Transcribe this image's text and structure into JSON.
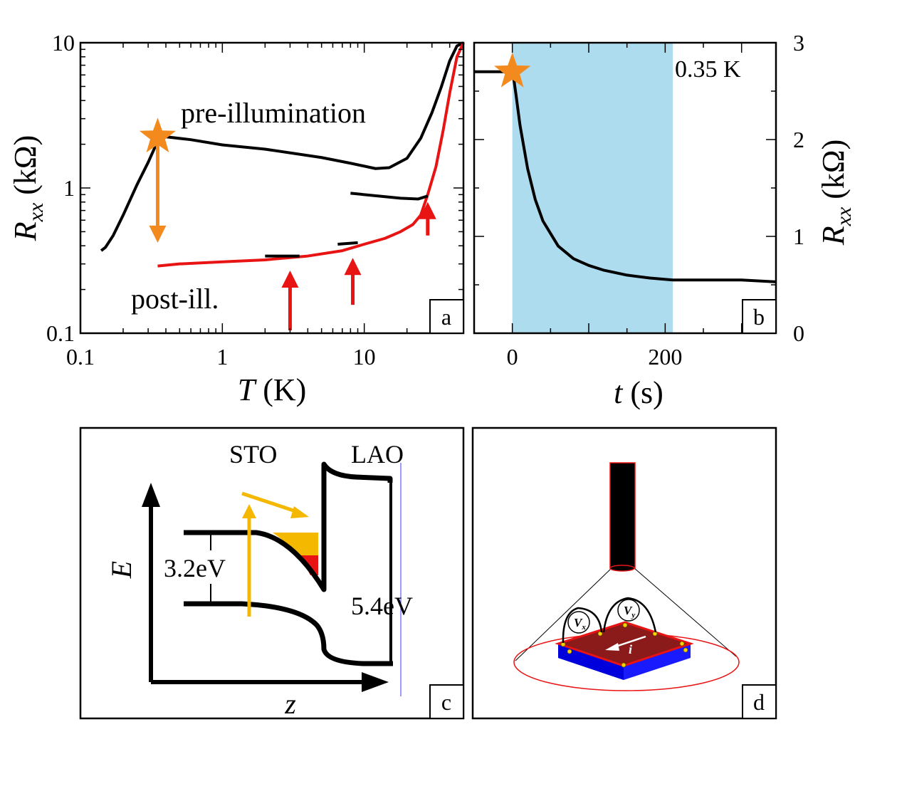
{
  "colors": {
    "orange": "#f28a1e",
    "red": "#e81313",
    "black": "#000000",
    "blue_shade": "#aedcef",
    "gold": "#f5b800",
    "maroon": "#8b1a1a",
    "sample_blue": "#1a1aff"
  },
  "panel_a": {
    "letter": "a",
    "pre_label": "pre-illumination",
    "post_label": "post-ill.",
    "xlabel_var": "T",
    "xlabel_unit": " (K)",
    "ylabel_var": "R",
    "ylabel_sub": "xx",
    "ylabel_unit": " (kΩ)",
    "xticks": [
      {
        "v": 0.1,
        "t": "0.1"
      },
      {
        "v": 1,
        "t": "1"
      },
      {
        "v": 10,
        "t": "10"
      }
    ],
    "yticks": [
      {
        "v": 0.1,
        "t": "0.1"
      },
      {
        "v": 1,
        "t": "1"
      },
      {
        "v": 10,
        "t": "10"
      }
    ]
  },
  "panel_b": {
    "letter": "b",
    "temp_label": "0.35 K",
    "xlabel_var": "t",
    "xlabel_unit": " (s)",
    "ylabel_var": "R",
    "ylabel_sub": "xx",
    "ylabel_unit": " (kΩ)",
    "xticks": [
      {
        "v": 0,
        "t": "0"
      },
      {
        "v": 200,
        "t": "200"
      }
    ],
    "yticks": [
      {
        "v": 0,
        "t": "0"
      },
      {
        "v": 1,
        "t": "1"
      },
      {
        "v": 2,
        "t": "2"
      },
      {
        "v": 3,
        "t": "3"
      }
    ]
  },
  "panel_c": {
    "letter": "c",
    "sto": "STO",
    "lao": "LAO",
    "gap_sto": "3.2eV",
    "gap_lao": "5.4eV",
    "axis_e": "E",
    "axis_z": "z"
  },
  "panel_d": {
    "letter": "d",
    "vx_var": "V",
    "vx_sub": "x",
    "vy_var": "V",
    "vy_sub": "y",
    "current": "i"
  },
  "chart_data": [
    {
      "type": "line",
      "panel": "a",
      "x_scale": "log",
      "y_scale": "log",
      "xlim": [
        0.1,
        50
      ],
      "ylim": [
        0.1,
        10
      ],
      "xlabel": "T (K)",
      "ylabel": "Rxx (kΩ)",
      "series": [
        {
          "name": "pre-illumination",
          "color": "#000000",
          "x": [
            0.14,
            0.15,
            0.17,
            0.2,
            0.25,
            0.3,
            0.35,
            0.4,
            0.6,
            1,
            2,
            5,
            8,
            12,
            15,
            20,
            25,
            30,
            35,
            40,
            45,
            50
          ],
          "y": [
            0.37,
            0.39,
            0.47,
            0.65,
            1.05,
            1.5,
            2.1,
            2.25,
            2.15,
            1.98,
            1.85,
            1.62,
            1.48,
            1.36,
            1.38,
            1.6,
            2.2,
            3.3,
            5.0,
            7.5,
            9.5,
            11
          ]
        },
        {
          "name": "post-ill.",
          "color": "#e81313",
          "x": [
            0.35,
            0.5,
            1,
            2,
            4,
            7,
            10,
            14,
            18,
            22,
            25,
            28,
            32,
            36,
            40,
            45,
            50
          ],
          "y": [
            0.29,
            0.3,
            0.31,
            0.32,
            0.34,
            0.37,
            0.41,
            0.45,
            0.5,
            0.56,
            0.65,
            0.9,
            1.4,
            2.5,
            4.5,
            8,
            11
          ]
        }
      ],
      "annotations": [
        {
          "type": "star",
          "x": 0.35,
          "y": 2.25
        },
        {
          "type": "arrow_down",
          "x": 0.35,
          "y_from": 2.1,
          "y_to": 0.42
        },
        {
          "type": "arrow_up",
          "x": 3,
          "y_from": 0.1,
          "y_to": 0.27
        },
        {
          "type": "arrow_up",
          "x": 8.3,
          "y_from": 0.15,
          "y_to": 0.33
        },
        {
          "type": "arrow_up",
          "x": 28,
          "y_from": 0.45,
          "y_to": 0.8
        }
      ],
      "branch_segments": [
        {
          "x": [
            2,
            3.5
          ],
          "y": [
            0.34,
            0.34
          ]
        },
        {
          "x": [
            6.5,
            9
          ],
          "y": [
            0.41,
            0.42
          ]
        },
        {
          "x": [
            8,
            18,
            24,
            28
          ],
          "y": [
            0.92,
            0.85,
            0.84,
            0.88
          ]
        }
      ]
    },
    {
      "type": "line",
      "panel": "b",
      "xlim": [
        -50,
        345
      ],
      "ylim": [
        0,
        3
      ],
      "xlabel": "t (s)",
      "ylabel": "Rxx (kΩ)",
      "series": [
        {
          "color": "#000000",
          "x": [
            -50,
            -30,
            -10,
            0,
            2,
            5,
            10,
            20,
            30,
            40,
            60,
            80,
            100,
            120,
            150,
            180,
            210,
            250,
            300,
            345
          ],
          "y": [
            2.7,
            2.7,
            2.7,
            2.7,
            2.62,
            2.45,
            2.15,
            1.7,
            1.38,
            1.16,
            0.9,
            0.77,
            0.7,
            0.65,
            0.6,
            0.57,
            0.55,
            0.55,
            0.55,
            0.53
          ]
        }
      ],
      "shaded_region": {
        "x_from": 0,
        "x_to": 210
      },
      "annotations": [
        {
          "type": "star",
          "x": 0,
          "y": 2.7
        }
      ]
    }
  ]
}
